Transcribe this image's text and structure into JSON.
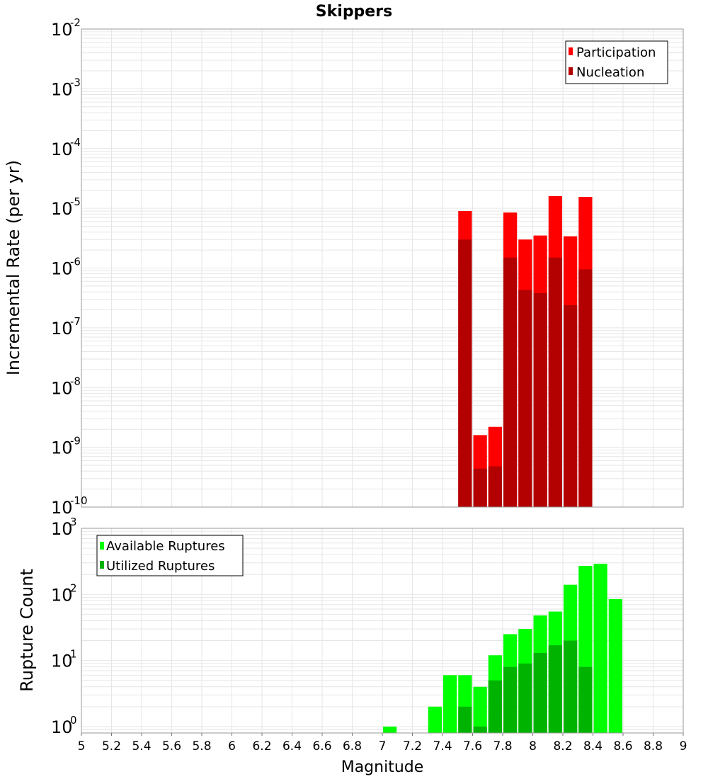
{
  "chart_data": [
    {
      "type": "bar",
      "title": "Skippers",
      "xlabel": "",
      "ylabel": "Incremental Rate (per yr)",
      "yscale": "log",
      "ylim": [
        1e-10,
        0.01
      ],
      "xlim": [
        5,
        9
      ],
      "bar_width": 0.1,
      "y_ticks": [
        {
          "base": "10",
          "exp": "-2"
        },
        {
          "base": "10",
          "exp": "-3"
        },
        {
          "base": "10",
          "exp": "-4"
        },
        {
          "base": "10",
          "exp": "-5"
        },
        {
          "base": "10",
          "exp": "-6"
        },
        {
          "base": "10",
          "exp": "-7"
        },
        {
          "base": "10",
          "exp": "-8"
        },
        {
          "base": "10",
          "exp": "-9"
        },
        {
          "base": "10",
          "exp": "-10"
        }
      ],
      "legend_position": "top-right",
      "x": [
        7.55,
        7.65,
        7.75,
        7.85,
        7.95,
        8.05,
        8.15,
        8.25,
        8.35
      ],
      "series": [
        {
          "name": "Participation",
          "color": "#ff0000",
          "values": [
            9e-06,
            1.6e-09,
            2.2e-09,
            8.5e-06,
            3e-06,
            3.5e-06,
            1.6e-05,
            3.4e-06,
            1.55e-05
          ]
        },
        {
          "name": "Nucleation",
          "color": "#b30000",
          "values": [
            3e-06,
            4.4e-10,
            4.8e-10,
            1.5e-06,
            4.3e-07,
            3.8e-07,
            1.5e-06,
            2.4e-07,
            9.5e-07
          ]
        }
      ]
    },
    {
      "type": "bar",
      "title": "",
      "xlabel": "Magnitude",
      "ylabel": "Rupture Count",
      "yscale": "log",
      "ylim": [
        0.8,
        1000
      ],
      "xlim": [
        5,
        9
      ],
      "bar_width": 0.1,
      "y_ticks": [
        {
          "value": 1000,
          "base": "10",
          "exp": "3"
        },
        {
          "value": 100,
          "base": "10",
          "exp": "2"
        },
        {
          "value": 10,
          "base": "10",
          "exp": "1"
        },
        {
          "value": 1,
          "base": "10",
          "exp": "0"
        }
      ],
      "x_ticks": [
        "5",
        "5.2",
        "5.4",
        "5.6",
        "5.8",
        "6",
        "6.2",
        "6.4",
        "6.6",
        "6.8",
        "7",
        "7.2",
        "7.4",
        "7.6",
        "7.8",
        "8",
        "8.2",
        "8.4",
        "8.6",
        "8.8",
        "9"
      ],
      "legend_position": "top-left",
      "x": [
        7.05,
        7.35,
        7.45,
        7.55,
        7.65,
        7.75,
        7.85,
        7.95,
        8.05,
        8.15,
        8.25,
        8.35,
        8.45,
        8.55
      ],
      "series": [
        {
          "name": "Available Ruptures",
          "color": "#00ff00",
          "values": [
            1,
            2,
            6,
            6,
            4,
            12,
            25,
            30,
            48,
            55,
            140,
            270,
            290,
            85
          ]
        },
        {
          "name": "Utilized Ruptures",
          "color": "#00b300",
          "values": [
            0,
            0,
            0,
            2,
            1,
            5,
            8,
            9,
            13,
            17,
            20,
            8,
            0,
            0
          ]
        }
      ]
    }
  ]
}
